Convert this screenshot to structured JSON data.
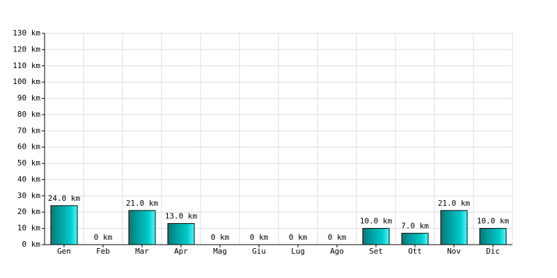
{
  "chart_data": {
    "type": "bar",
    "categories": [
      "Gen",
      "Feb",
      "Mar",
      "Apr",
      "Mag",
      "Giu",
      "Lug",
      "Ago",
      "Set",
      "Ott",
      "Nov",
      "Dic"
    ],
    "values": [
      24,
      0,
      21,
      13,
      0,
      0,
      0,
      0,
      10,
      7,
      21,
      10
    ],
    "value_labels": [
      "24.0 km",
      "0 km",
      "21.0 km",
      "13.0 km",
      "0 km",
      "0 km",
      "0 km",
      "0 km",
      "10.0 km",
      "7.0 km",
      "21.0 km",
      "10.0 km"
    ],
    "color": "#00cccc",
    "ylim": [
      0,
      130
    ],
    "yticks": [
      {
        "value": 0,
        "label": "0 km"
      },
      {
        "value": 10,
        "label": "10 km"
      },
      {
        "value": 20,
        "label": "20 km"
      },
      {
        "value": 30,
        "label": "30 km"
      },
      {
        "value": 40,
        "label": "40 km"
      },
      {
        "value": 50,
        "label": "50 km"
      },
      {
        "value": 60,
        "label": "60 km"
      },
      {
        "value": 70,
        "label": "70 km"
      },
      {
        "value": 80,
        "label": "80 km"
      },
      {
        "value": 90,
        "label": "90 km"
      },
      {
        "value": 100,
        "label": "100 km"
      },
      {
        "value": 110,
        "label": "110 km"
      },
      {
        "value": 120,
        "label": "120 km"
      },
      {
        "value": 130,
        "label": "130 km"
      }
    ],
    "grid": true
  }
}
